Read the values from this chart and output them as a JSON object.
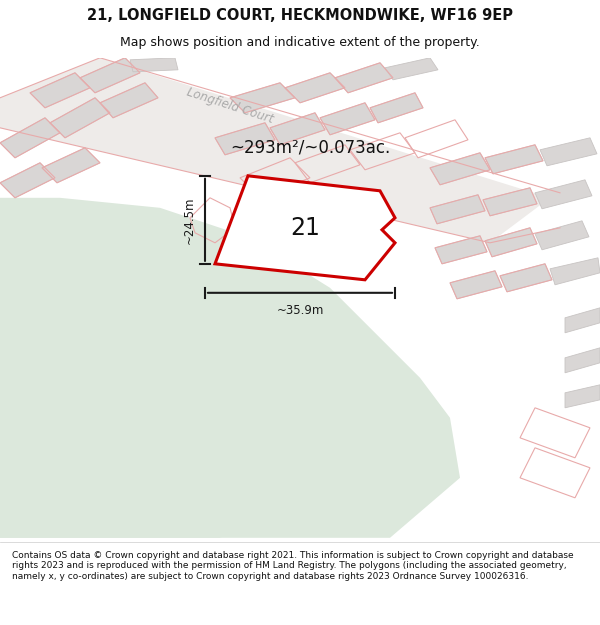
{
  "title": "21, LONGFIELD COURT, HECKMONDWIKE, WF16 9EP",
  "subtitle": "Map shows position and indicative extent of the property.",
  "footer": "Contains OS data © Crown copyright and database right 2021. This information is subject to Crown copyright and database rights 2023 and is reproduced with the permission of HM Land Registry. The polygons (including the associated geometry, namely x, y co-ordinates) are subject to Crown copyright and database rights 2023 Ordnance Survey 100026316.",
  "area_label": "~293m²/~0.073ac.",
  "plot_number": "21",
  "dim_width": "~35.9m",
  "dim_height": "~24.5m",
  "street_label": "Longfield Court",
  "map_bg": "#f5f3f2",
  "green_color": "#dce8dc",
  "building_fill": "#d9d6d5",
  "building_edge": "#c8c4c3",
  "road_fill": "#eeebe9",
  "plot_fill": "#ffffff",
  "plot_edge": "#cc0000",
  "pink_edge": "#e8aaaa",
  "dim_color": "#1a1a1a",
  "street_color": "#aaaaaa",
  "title_color": "#111111",
  "footer_color": "#111111",
  "figsize": [
    6.0,
    6.25
  ],
  "dpi": 100,
  "title_fontsize": 10.5,
  "subtitle_fontsize": 9,
  "footer_fontsize": 6.5
}
